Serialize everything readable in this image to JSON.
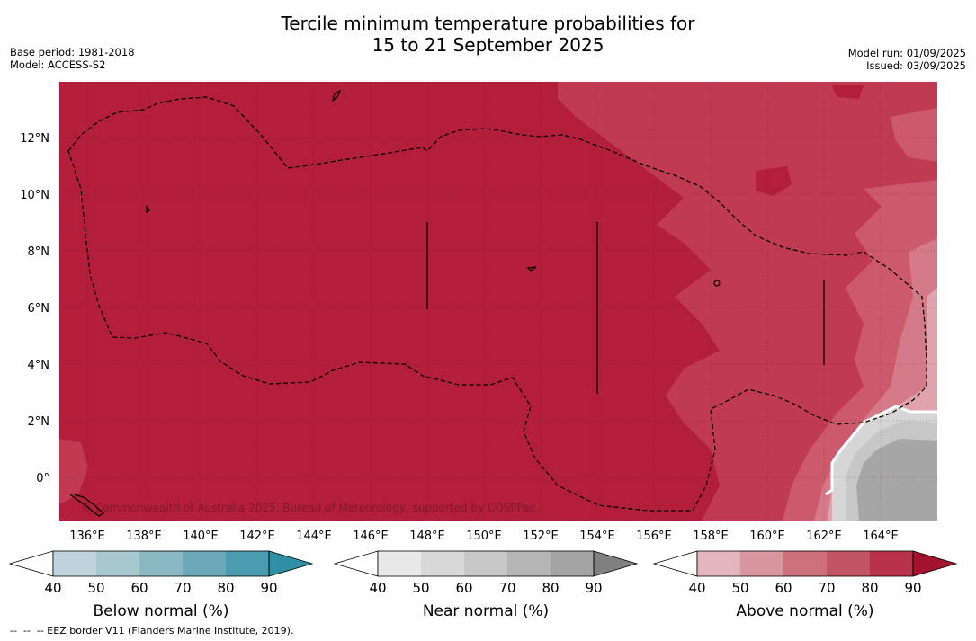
{
  "title": {
    "line1": "Tercile minimum temperature probabilities for",
    "line2": "15 to 21 September 2025"
  },
  "meta_left": {
    "base_period": "Base period: 1981-2018",
    "model": "Model: ACCESS-S2"
  },
  "meta_right": {
    "model_run": "Model run: 01/09/2025",
    "issued": "Issued: 03/09/2025"
  },
  "map": {
    "lat_labels": [
      "12°N",
      "10°N",
      "8°N",
      "6°N",
      "4°N",
      "2°N",
      "0°"
    ],
    "lon_labels": [
      "136°E",
      "138°E",
      "140°E",
      "142°E",
      "144°E",
      "146°E",
      "148°E",
      "150°E",
      "152°E",
      "154°E",
      "156°E",
      "158°E",
      "160°E",
      "162°E",
      "164°E"
    ],
    "copyright": "© Commonwealth of Australia 2025, Bureau of Meteorology, supported by COSPPac",
    "colors": {
      "above_90": "#b31e3a",
      "above_80": "#c03a52",
      "above_70": "#cc5a6c",
      "above_60": "#d57a88",
      "above_50": "#e0a3ad",
      "near_50": "#d6d6d6",
      "near_60": "#c7c7c7",
      "near_70": "#a6a6a6"
    }
  },
  "colorbars": [
    {
      "title": "Below normal (%)",
      "ticks": [
        "40",
        "50",
        "60",
        "70",
        "80",
        "90"
      ],
      "colors": [
        "#bed3da",
        "#a8c8cf",
        "#8ab9c4",
        "#6aa9b9",
        "#4a9db0",
        "#2e8fa5"
      ]
    },
    {
      "title": "Near normal (%)",
      "ticks": [
        "40",
        "50",
        "60",
        "70",
        "80",
        "90"
      ],
      "colors": [
        "#e8e8e8",
        "#d8d8d8",
        "#c8c8c8",
        "#b5b5b5",
        "#a3a3a3",
        "#808080"
      ]
    },
    {
      "title": "Above normal (%)",
      "ticks": [
        "40",
        "50",
        "60",
        "70",
        "80",
        "90"
      ],
      "colors": [
        "#e2b5bd",
        "#d8969f",
        "#cc707c",
        "#c35463",
        "#b9324b",
        "#a3122e"
      ]
    }
  ],
  "footnote": "--  --  -- EEZ border V11 (Flanders Marine Institute, 2019)."
}
